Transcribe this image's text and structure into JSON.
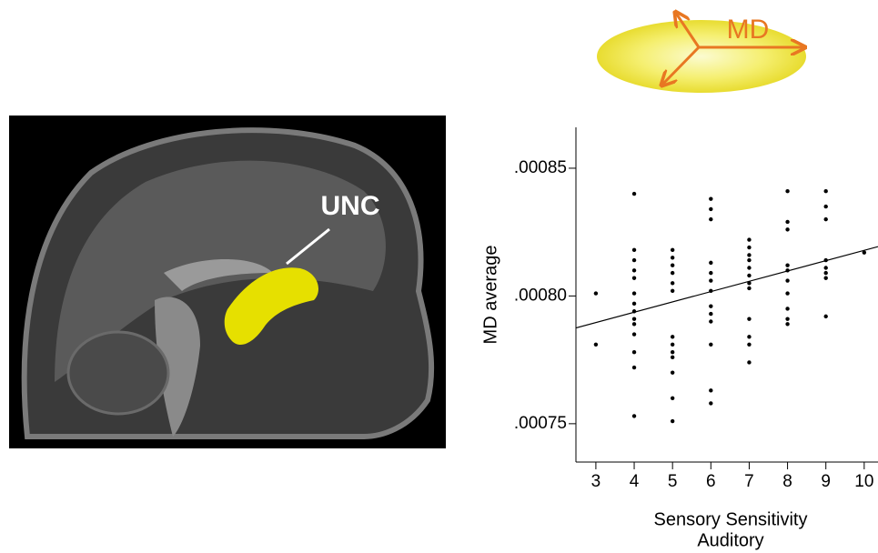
{
  "figure": {
    "brain_label": "UNC",
    "diffusion_label": "MD"
  },
  "chart_data": {
    "type": "scatter",
    "ylabel": "MD average",
    "xlabel": [
      "Sensory Sensitivity",
      "Auditory"
    ],
    "color": "#000000",
    "x": [
      3,
      3,
      4,
      4,
      4,
      4,
      4,
      4,
      4,
      4,
      4,
      4,
      4,
      4,
      4,
      4,
      5,
      5,
      5,
      5,
      5,
      5,
      5,
      5,
      5,
      5,
      5,
      5,
      5,
      6,
      6,
      6,
      6,
      6,
      6,
      6,
      6,
      6,
      6,
      6,
      6,
      6,
      7,
      7,
      7,
      7,
      7,
      7,
      7,
      7,
      7,
      7,
      7,
      7,
      8,
      8,
      8,
      8,
      8,
      8,
      8,
      8,
      8,
      8,
      9,
      9,
      9,
      9,
      9,
      9,
      9,
      9,
      10
    ],
    "y": [
      0.000801,
      0.000781,
      0.00084,
      0.000818,
      0.000814,
      0.00081,
      0.000807,
      0.000801,
      0.000797,
      0.000794,
      0.000791,
      0.000789,
      0.000785,
      0.000778,
      0.000772,
      0.000753,
      0.000818,
      0.000815,
      0.000812,
      0.000809,
      0.000805,
      0.000802,
      0.000784,
      0.000781,
      0.000778,
      0.000776,
      0.00077,
      0.00076,
      0.000751,
      0.000838,
      0.000834,
      0.00083,
      0.000813,
      0.000809,
      0.000806,
      0.000802,
      0.000796,
      0.000793,
      0.00079,
      0.000781,
      0.000763,
      0.000758,
      0.000822,
      0.000819,
      0.000816,
      0.000814,
      0.000811,
      0.000808,
      0.000805,
      0.000803,
      0.000791,
      0.000784,
      0.000781,
      0.000774,
      0.000841,
      0.000829,
      0.000826,
      0.000812,
      0.00081,
      0.000806,
      0.000801,
      0.000795,
      0.000791,
      0.000789,
      0.000841,
      0.000835,
      0.00083,
      0.000814,
      0.000811,
      0.000809,
      0.000807,
      0.000792,
      0.000817
    ],
    "trendline": {
      "x": [
        2.48,
        10.36
      ],
      "values": [
        0.0007875,
        0.0008193
      ],
      "color": "#000000"
    },
    "xlim": [
      2.48,
      10.36
    ],
    "ylim": [
      0.000735,
      0.000866
    ],
    "xticks": [
      3,
      4,
      5,
      6,
      7,
      8,
      9,
      10
    ],
    "yticks": [
      {
        "value": 0.00075,
        "label": ".00075"
      },
      {
        "value": 0.0008,
        "label": ".00080"
      },
      {
        "value": 0.00085,
        "label": ".00085"
      }
    ]
  }
}
